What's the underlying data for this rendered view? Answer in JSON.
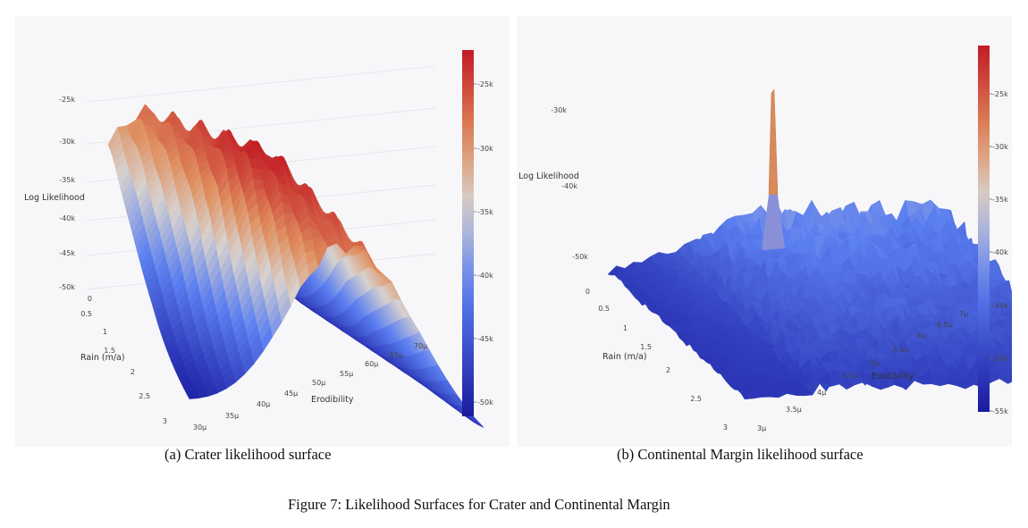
{
  "figure_caption": "Figure 7: Likelihood Surfaces for Crater and Continental Margin",
  "colors": {
    "low": "#1a1aa0",
    "mid": "#5b7ff0",
    "neutral": "#d7d2cf",
    "warm": "#e09060",
    "high": "#c21b24",
    "panel_bg": "#f7f7f9"
  },
  "chart_data": [
    {
      "type": "surface",
      "caption": "(a) Crater likelihood surface",
      "zlabel": "Log Likelihood",
      "xlabel": "Rain (m/a)",
      "ylabel": "Erodibility",
      "z_ticks": [
        "-25k",
        "-30k",
        "-35k",
        "-40k",
        "-45k",
        "-50k"
      ],
      "rain_ticks": [
        "0",
        "0.5",
        "1",
        "1.5",
        "2",
        "2.5",
        "3"
      ],
      "erod_ticks": [
        "30μ",
        "35μ",
        "40μ",
        "45μ",
        "50μ",
        "55μ",
        "60μ",
        "65μ",
        "70μ"
      ],
      "colorbar_ticks": [
        "-25k",
        "-30k",
        "-35k",
        "-40k",
        "-45k",
        "-50k"
      ],
      "zlim": [
        -52000,
        -22000
      ],
      "peak": {
        "rain": 1.6,
        "erodibility": "50μ",
        "log_likelihood": -23000
      }
    },
    {
      "type": "surface",
      "caption": "(b) Continental Margin likelihood surface",
      "zlabel": "Log Likelihood",
      "xlabel": "Rain (m/a)",
      "ylabel": "Erodibility",
      "z_ticks": [
        "-30k",
        "-40k",
        "-50k"
      ],
      "rain_ticks": [
        "0",
        "0.5",
        "1",
        "1.5",
        "2",
        "2.5",
        "3"
      ],
      "erod_ticks": [
        "3μ",
        "3.5μ",
        "4μ",
        "4.5μ",
        "5μ",
        "5.5μ",
        "6μ",
        "6.5μ",
        "7μ"
      ],
      "colorbar_ticks": [
        "-25k",
        "-30k",
        "-35k",
        "-40k",
        "-45k",
        "-50k",
        "-55k"
      ],
      "zlim": [
        -56000,
        -22000
      ],
      "peak": {
        "rain": 0.9,
        "erodibility": "5.5μ",
        "log_likelihood": -27000
      }
    }
  ]
}
